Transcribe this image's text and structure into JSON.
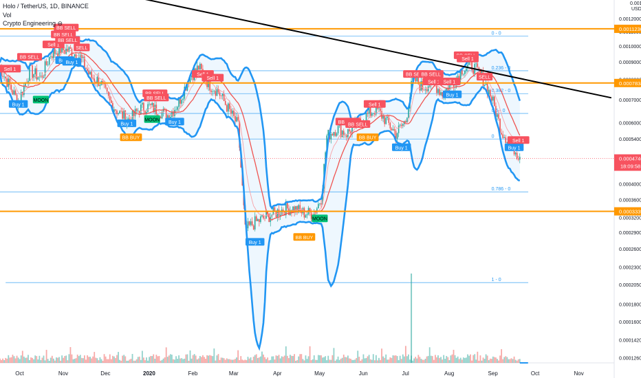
{
  "header": {
    "title": "Holo / TetherUS, 1D, BINANCE",
    "indicator1": "Vol",
    "indicator2": "Crypto Engineering ⊖"
  },
  "chart_data": {
    "type": "candlestick",
    "scale": "log",
    "price_axis_unit": "USDT",
    "price_axis_top": "0.00134000",
    "price_ticks": [
      "0.0012000",
      "0.0011000",
      "0.0010000",
      "0.0009000",
      "0.0008000",
      "0.0007000",
      "0.0006000",
      "0.0005400",
      "0.0004800",
      "0.0004000",
      "0.0003600",
      "0.0003200",
      "0.0002900",
      "0.0002600",
      "0.0002300",
      "0.0002050",
      "0.0001800",
      "0.0001600",
      "0.0001420",
      "0.0001260"
    ],
    "time_ticks": [
      "Oct",
      "Nov",
      "Dec",
      "2020",
      "Feb",
      "Mar",
      "Apr",
      "May",
      "Jun",
      "Jul",
      "Aug",
      "Sep",
      "Oct",
      "Nov"
    ],
    "price_range": [
      0.000122,
      0.00136
    ],
    "horizontal_levels": [
      {
        "value": "0.0011230",
        "color": "#ff9800"
      },
      {
        "value": "0.0007834",
        "color": "#ff9800"
      },
      {
        "value": "0.0003339",
        "color": "#ff9800"
      }
    ],
    "current_price": {
      "value": "0.0004746",
      "countdown": "18:09:58",
      "color": "#f7525f"
    },
    "fib_levels": [
      {
        "label": "0 - 0",
        "price": 0.00107
      },
      {
        "label": "0.236 - 0",
        "price": 0.00085
      },
      {
        "label": "0.382 - 0",
        "price": 0.00073
      },
      {
        "label": "0.5 - 0",
        "price": 0.00064
      },
      {
        "label": "0",
        "price": 0.00054
      },
      {
        "label": "0.786 - 0",
        "price": 0.00038
      },
      {
        "label": "1 - 0",
        "price": 0.000208
      }
    ],
    "trendline": {
      "color": "#000000",
      "from": {
        "t": "2019-12-28",
        "price": 0.00138
      },
      "to": {
        "t": "2020-11-28",
        "price": 0.00071
      }
    },
    "signals": [
      {
        "text": "Sell 1",
        "t": "2019-09-28",
        "price": 0.00086,
        "kind": "sell"
      },
      {
        "text": "BB SELL",
        "t": "2019-10-12",
        "price": 0.00093,
        "kind": "sell"
      },
      {
        "text": "Sell 1",
        "t": "2019-10-29",
        "price": 0.00101,
        "kind": "sell"
      },
      {
        "text": "BB SELL",
        "t": "2019-11-07",
        "price": 0.00113,
        "kind": "sell"
      },
      {
        "text": "BB SELL",
        "t": "2019-11-05",
        "price": 0.00108,
        "kind": "sell"
      },
      {
        "text": "BB SELL",
        "t": "2019-11-08",
        "price": 0.00104,
        "kind": "sell"
      },
      {
        "text": "SELL",
        "t": "2019-11-18",
        "price": 0.00099,
        "kind": "sell"
      },
      {
        "text": "Buy 1",
        "t": "2019-11-06",
        "price": 0.00091,
        "kind": "buy"
      },
      {
        "text": "Buy 1",
        "t": "2019-11-11",
        "price": 0.0009,
        "kind": "buy"
      },
      {
        "text": "Buy 1",
        "t": "2019-10-04",
        "price": 0.00068,
        "kind": "buy"
      },
      {
        "text": "MOON",
        "t": "2019-10-20",
        "price": 0.0007,
        "kind": "moon"
      },
      {
        "text": "BB SELL",
        "t": "2020-01-09",
        "price": 0.00073,
        "kind": "sell"
      },
      {
        "text": "BB SELL",
        "t": "2020-01-10",
        "price": 0.00071,
        "kind": "sell"
      },
      {
        "text": "Buy 1",
        "t": "2019-12-20",
        "price": 0.000598,
        "kind": "buy"
      },
      {
        "text": "BB BUY",
        "t": "2019-12-23",
        "price": 0.000545,
        "kind": "bbbuy"
      },
      {
        "text": "MOON",
        "t": "2020-01-07",
        "price": 0.000615,
        "kind": "moon"
      },
      {
        "text": "Buy 1",
        "t": "2020-01-23",
        "price": 0.000605,
        "kind": "buy"
      },
      {
        "text": "Sell 1",
        "t": "2020-02-12",
        "price": 0.00083,
        "kind": "sell"
      },
      {
        "text": "Sell 1",
        "t": "2020-02-19",
        "price": 0.00081,
        "kind": "sell"
      },
      {
        "text": "Buy 1",
        "t": "2020-03-20",
        "price": 0.000272,
        "kind": "buy"
      },
      {
        "text": "MOON",
        "t": "2020-05-05",
        "price": 0.000318,
        "kind": "moon"
      },
      {
        "text": "BB BUY",
        "t": "2020-04-24",
        "price": 0.000281,
        "kind": "bbbuy"
      },
      {
        "text": "BB SELL",
        "t": "2020-05-25",
        "price": 0.000605,
        "kind": "sell"
      },
      {
        "text": "BB SELL",
        "t": "2020-06-01",
        "price": 0.000595,
        "kind": "sell"
      },
      {
        "text": "Sell 1",
        "t": "2020-06-13",
        "price": 0.00068,
        "kind": "sell"
      },
      {
        "text": "BB BUY",
        "t": "2020-06-08",
        "price": 0.000545,
        "kind": "bbbuy"
      },
      {
        "text": "Buy 1",
        "t": "2020-07-02",
        "price": 0.00051,
        "kind": "buy"
      },
      {
        "text": "BB SELL",
        "t": "2020-07-12",
        "price": 0.00083,
        "kind": "sell"
      },
      {
        "text": "BB SELL",
        "t": "2020-07-23",
        "price": 0.00083,
        "kind": "sell"
      },
      {
        "text": "Sell 1",
        "t": "2020-07-25",
        "price": 0.00079,
        "kind": "sell"
      },
      {
        "text": "Sell 1",
        "t": "2020-08-05",
        "price": 0.00079,
        "kind": "sell"
      },
      {
        "text": "Buy 1",
        "t": "2020-08-07",
        "price": 0.000725,
        "kind": "buy"
      },
      {
        "text": "BB SELL",
        "t": "2020-08-17",
        "price": 0.00094,
        "kind": "sell"
      },
      {
        "text": "Sell 1",
        "t": "2020-08-18",
        "price": 0.00092,
        "kind": "sell"
      },
      {
        "text": "SELL",
        "t": "2020-08-30",
        "price": 0.000815,
        "kind": "sell"
      },
      {
        "text": "Buy 1",
        "t": "2020-09-20",
        "price": 0.00051,
        "kind": "buy"
      },
      {
        "text": "Sell 1",
        "t": "2020-09-23",
        "price": 0.000535,
        "kind": "sell"
      }
    ],
    "price_path": [
      {
        "t": "2019-09-20",
        "price": 0.00088
      },
      {
        "t": "2019-09-27",
        "price": 0.00078
      },
      {
        "t": "2019-10-04",
        "price": 0.00069
      },
      {
        "t": "2019-10-12",
        "price": 0.00085
      },
      {
        "t": "2019-10-20",
        "price": 0.00081
      },
      {
        "t": "2019-10-27",
        "price": 0.00095
      },
      {
        "t": "2019-11-03",
        "price": 0.00098
      },
      {
        "t": "2019-11-10",
        "price": 0.00097
      },
      {
        "t": "2019-11-17",
        "price": 0.00093
      },
      {
        "t": "2019-11-24",
        "price": 0.00082
      },
      {
        "t": "2019-12-01",
        "price": 0.00079
      },
      {
        "t": "2019-12-08",
        "price": 0.00069
      },
      {
        "t": "2019-12-15",
        "price": 0.00064
      },
      {
        "t": "2019-12-22",
        "price": 0.00061
      },
      {
        "t": "2019-12-29",
        "price": 0.00066
      },
      {
        "t": "2020-01-05",
        "price": 0.00067
      },
      {
        "t": "2020-01-12",
        "price": 0.00065
      },
      {
        "t": "2020-01-19",
        "price": 0.00063
      },
      {
        "t": "2020-01-26",
        "price": 0.00069
      },
      {
        "t": "2020-02-02",
        "price": 0.00081
      },
      {
        "t": "2020-02-09",
        "price": 0.00087
      },
      {
        "t": "2020-02-16",
        "price": 0.00078
      },
      {
        "t": "2020-02-23",
        "price": 0.00074
      },
      {
        "t": "2020-03-01",
        "price": 0.00066
      },
      {
        "t": "2020-03-08",
        "price": 0.00059
      },
      {
        "t": "2020-03-13",
        "price": 0.000295
      },
      {
        "t": "2020-03-20",
        "price": 0.00031
      },
      {
        "t": "2020-03-27",
        "price": 0.00032
      },
      {
        "t": "2020-04-03",
        "price": 0.00033
      },
      {
        "t": "2020-04-10",
        "price": 0.00034
      },
      {
        "t": "2020-04-17",
        "price": 0.00034
      },
      {
        "t": "2020-04-24",
        "price": 0.00033
      },
      {
        "t": "2020-05-01",
        "price": 0.00033
      },
      {
        "t": "2020-05-06",
        "price": 0.000365
      },
      {
        "t": "2020-05-10",
        "price": 0.00055
      },
      {
        "t": "2020-05-17",
        "price": 0.00058
      },
      {
        "t": "2020-05-24",
        "price": 0.00056
      },
      {
        "t": "2020-05-31",
        "price": 0.00059
      },
      {
        "t": "2020-06-07",
        "price": 0.00063
      },
      {
        "t": "2020-06-14",
        "price": 0.00066
      },
      {
        "t": "2020-06-21",
        "price": 0.00061
      },
      {
        "t": "2020-06-28",
        "price": 0.00056
      },
      {
        "t": "2020-07-05",
        "price": 0.00061
      },
      {
        "t": "2020-07-10",
        "price": 0.00081
      },
      {
        "t": "2020-07-17",
        "price": 0.00076
      },
      {
        "t": "2020-07-24",
        "price": 0.00079
      },
      {
        "t": "2020-07-31",
        "price": 0.00073
      },
      {
        "t": "2020-08-07",
        "price": 0.00078
      },
      {
        "t": "2020-08-14",
        "price": 0.00086
      },
      {
        "t": "2020-08-21",
        "price": 0.00088
      },
      {
        "t": "2020-08-28",
        "price": 0.00082
      },
      {
        "t": "2020-09-04",
        "price": 0.00071
      },
      {
        "t": "2020-09-11",
        "price": 0.00057
      },
      {
        "t": "2020-09-18",
        "price": 0.00052
      },
      {
        "t": "2020-09-24",
        "price": 0.00048
      }
    ],
    "volume_spike": {
      "t": "2020-07-09",
      "relative": 1.0
    }
  }
}
